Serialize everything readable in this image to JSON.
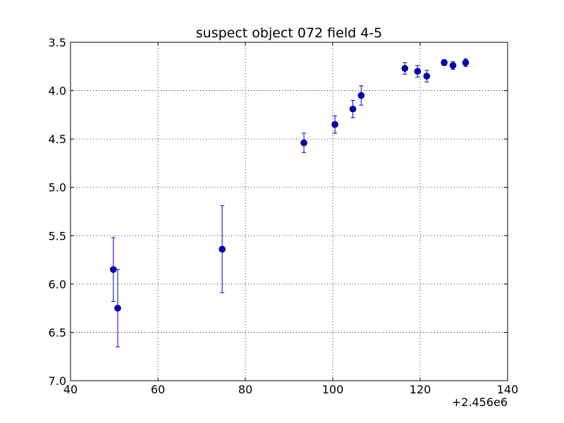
{
  "chart_data": {
    "type": "scatter",
    "title": "suspect object 072 field 4-5",
    "xlabel": "",
    "ylabel": "",
    "x_offset_label": "+2.456e6",
    "xlim": [
      40,
      140
    ],
    "ylim": [
      3.5,
      7.0
    ],
    "y_inverted": true,
    "grid": true,
    "x_ticks": [
      "40",
      "60",
      "80",
      "100",
      "120",
      "140"
    ],
    "y_ticks": [
      "3.5",
      "4.0",
      "4.5",
      "5.0",
      "5.5",
      "6.0",
      "6.5",
      "7.0"
    ],
    "marker_color": "#0000cc",
    "errorbar_color": "#0000cc",
    "points": [
      {
        "x": 49.8,
        "y": 5.85,
        "err": 0.33
      },
      {
        "x": 50.8,
        "y": 6.25,
        "err": 0.4
      },
      {
        "x": 74.7,
        "y": 5.64,
        "err": 0.45
      },
      {
        "x": 93.4,
        "y": 4.54,
        "err": 0.1
      },
      {
        "x": 100.5,
        "y": 4.35,
        "err": 0.09
      },
      {
        "x": 104.6,
        "y": 4.19,
        "err": 0.09
      },
      {
        "x": 106.5,
        "y": 4.05,
        "err": 0.1
      },
      {
        "x": 116.5,
        "y": 3.77,
        "err": 0.06
      },
      {
        "x": 119.4,
        "y": 3.8,
        "err": 0.06
      },
      {
        "x": 121.5,
        "y": 3.85,
        "err": 0.06
      },
      {
        "x": 125.5,
        "y": 3.71,
        "err": 0.03
      },
      {
        "x": 127.5,
        "y": 3.74,
        "err": 0.04
      },
      {
        "x": 130.4,
        "y": 3.71,
        "err": 0.04
      }
    ]
  }
}
